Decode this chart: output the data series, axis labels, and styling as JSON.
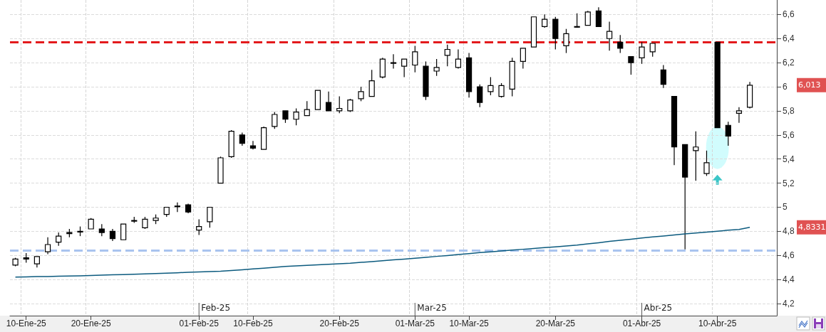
{
  "chart_data": {
    "type": "candlestick",
    "color": "#000000",
    "categories": [
      null,
      "10-Ene-25",
      null,
      null,
      null,
      null,
      null,
      "20-Ene-25",
      null,
      null,
      null,
      null,
      null,
      null,
      null,
      null,
      null,
      "01-Feb-25",
      null,
      null,
      null,
      null,
      "10-Feb-25",
      null,
      null,
      null,
      null,
      null,
      null,
      null,
      "20-Feb-25",
      null,
      null,
      null,
      null,
      null,
      null,
      "01-Mar-25",
      null,
      null,
      null,
      null,
      "10-Mar-25",
      null,
      null,
      null,
      null,
      null,
      null,
      null,
      "20-Mar-25",
      null,
      null,
      null,
      null,
      null,
      null,
      null,
      "01-Abr-25",
      null,
      null,
      null,
      null,
      null,
      null,
      "10-Abr-25",
      null,
      null,
      null
    ],
    "ohlc": [
      [
        4.52,
        4.58,
        4.51,
        4.57
      ],
      [
        4.58,
        4.62,
        4.54,
        4.57
      ],
      [
        4.53,
        4.59,
        4.5,
        4.59
      ],
      [
        4.63,
        4.75,
        4.61,
        4.69
      ],
      [
        4.71,
        4.79,
        4.68,
        4.76
      ],
      [
        4.79,
        4.82,
        4.75,
        4.78
      ],
      [
        4.8,
        4.84,
        4.76,
        4.8
      ],
      [
        4.82,
        4.91,
        4.82,
        4.9
      ],
      [
        4.82,
        4.86,
        4.76,
        4.79
      ],
      [
        4.8,
        4.82,
        4.72,
        4.74
      ],
      [
        4.73,
        4.86,
        4.73,
        4.86
      ],
      [
        4.89,
        4.92,
        4.87,
        4.89
      ],
      [
        4.83,
        4.92,
        4.82,
        4.9
      ],
      [
        4.89,
        4.94,
        4.86,
        4.91
      ],
      [
        4.94,
        5.0,
        4.92,
        5.0
      ],
      [
        5.01,
        5.04,
        4.96,
        5.01
      ],
      [
        5.02,
        5.03,
        4.95,
        4.96
      ],
      [
        4.81,
        4.9,
        4.77,
        4.84
      ],
      [
        4.88,
        5.0,
        4.83,
        5.0
      ],
      [
        5.2,
        5.42,
        5.2,
        5.41
      ],
      [
        5.42,
        5.64,
        5.41,
        5.63
      ],
      [
        5.6,
        5.62,
        5.51,
        5.53
      ],
      [
        5.51,
        5.55,
        5.48,
        5.49
      ],
      [
        5.48,
        5.67,
        5.48,
        5.66
      ],
      [
        5.67,
        5.79,
        5.65,
        5.77
      ],
      [
        5.8,
        5.8,
        5.7,
        5.73
      ],
      [
        5.73,
        5.82,
        5.68,
        5.79
      ],
      [
        5.76,
        5.88,
        5.76,
        5.81
      ],
      [
        5.81,
        5.97,
        5.81,
        5.97
      ],
      [
        5.87,
        5.96,
        5.8,
        5.8
      ],
      [
        5.8,
        5.92,
        5.78,
        5.82
      ],
      [
        5.8,
        5.9,
        5.79,
        5.89
      ],
      [
        5.9,
        6.0,
        5.88,
        5.96
      ],
      [
        5.92,
        6.14,
        5.92,
        6.05
      ],
      [
        6.08,
        6.24,
        6.07,
        6.23
      ],
      [
        6.2,
        6.27,
        6.15,
        6.2
      ],
      [
        6.17,
        6.23,
        6.08,
        6.23
      ],
      [
        6.18,
        6.34,
        6.12,
        6.29
      ],
      [
        6.17,
        6.21,
        5.89,
        5.92
      ],
      [
        6.13,
        6.23,
        6.09,
        6.16
      ],
      [
        6.26,
        6.35,
        6.17,
        6.31
      ],
      [
        6.16,
        6.31,
        6.15,
        6.23
      ],
      [
        6.24,
        6.28,
        5.91,
        5.96
      ],
      [
        6.0,
        6.02,
        5.83,
        5.87
      ],
      [
        5.96,
        6.08,
        5.93,
        6.01
      ],
      [
        5.92,
        6.03,
        5.91,
        6.01
      ],
      [
        5.98,
        6.24,
        5.92,
        6.21
      ],
      [
        6.21,
        6.32,
        6.15,
        6.32
      ],
      [
        6.33,
        6.58,
        6.33,
        6.58
      ],
      [
        6.5,
        6.6,
        6.49,
        6.56
      ],
      [
        6.56,
        6.58,
        6.31,
        6.4
      ],
      [
        6.34,
        6.48,
        6.28,
        6.44
      ],
      [
        6.5,
        6.61,
        6.49,
        6.5
      ],
      [
        6.51,
        6.63,
        6.51,
        6.62
      ],
      [
        6.63,
        6.66,
        6.5,
        6.5
      ],
      [
        6.4,
        6.54,
        6.3,
        6.46
      ],
      [
        6.37,
        6.43,
        6.28,
        6.32
      ],
      [
        6.25,
        6.25,
        6.1,
        6.2
      ],
      [
        6.24,
        6.37,
        6.19,
        6.33
      ],
      [
        6.29,
        6.36,
        6.25,
        6.36
      ],
      [
        6.14,
        6.18,
        5.99,
        6.02
      ],
      [
        5.92,
        5.92,
        5.35,
        5.5
      ],
      [
        5.52,
        5.52,
        4.65,
        5.25
      ],
      [
        5.47,
        5.63,
        5.22,
        5.5
      ],
      [
        5.28,
        5.47,
        5.26,
        5.37
      ],
      [
        6.37,
        6.37,
        5.66,
        5.66
      ],
      [
        5.68,
        5.71,
        5.51,
        5.59
      ],
      [
        5.78,
        5.83,
        5.7,
        5.8
      ],
      [
        5.83,
        6.04,
        5.82,
        6.013
      ]
    ],
    "series": [
      {
        "type": "line",
        "color": "#0b5a7e",
        "values": [
          4.42,
          4.422,
          4.424,
          4.425,
          4.427,
          4.429,
          4.431,
          4.433,
          4.436,
          4.439,
          4.441,
          4.444,
          4.446,
          4.449,
          4.453,
          4.456,
          4.46,
          4.463,
          4.466,
          4.469,
          4.475,
          4.481,
          4.488,
          4.494,
          4.501,
          4.508,
          4.513,
          4.518,
          4.522,
          4.527,
          4.531,
          4.535,
          4.542,
          4.549,
          4.556,
          4.563,
          4.569,
          4.576,
          4.584,
          4.592,
          4.599,
          4.607,
          4.615,
          4.623,
          4.63,
          4.637,
          4.644,
          4.651,
          4.658,
          4.665,
          4.671,
          4.678,
          4.686,
          4.696,
          4.705,
          4.716,
          4.725,
          4.735,
          4.745,
          4.753,
          4.761,
          4.77,
          4.778,
          4.786,
          4.794,
          4.801,
          4.809,
          4.816,
          4.833
        ]
      }
    ],
    "ylim": [
      4.1,
      6.72
    ],
    "yticks": [
      {
        "value": 4.2,
        "label": "4,2"
      },
      {
        "value": 4.4,
        "label": "4,4"
      },
      {
        "value": 4.6,
        "label": "4,6"
      },
      {
        "value": 4.8,
        "label": "4,8"
      },
      5,
      {
        "value": 5.2,
        "label": "5,2"
      },
      {
        "value": 5.4,
        "label": "5,4"
      },
      {
        "value": 5.6,
        "label": "5,6"
      },
      {
        "value": 5.8,
        "label": "5,8"
      },
      {
        "value": 6.0,
        "label": "6"
      },
      {
        "value": 6.2,
        "label": "6,2"
      },
      {
        "value": 6.4,
        "label": "6,4"
      },
      {
        "value": 6.6,
        "label": "6,6"
      }
    ],
    "ref_lines": [
      {
        "axis": "y",
        "value": 6.37,
        "color": "#e31a1c",
        "line_style": "dashed"
      },
      {
        "axis": "y",
        "value": 4.64,
        "color": "#a9c4ef",
        "line_style": "dashed"
      }
    ],
    "annotations": [
      "Feb-25",
      "Mar-25",
      "Abr-25",
      "6,013",
      "4,8331"
    ],
    "grid": true,
    "marker": "none",
    "line_style": "solid"
  }
}
